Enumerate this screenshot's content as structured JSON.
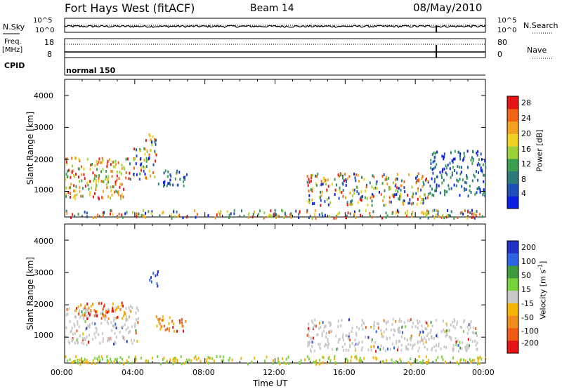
{
  "header": {
    "title": "Fort Hays West (fitACF)",
    "beam": "Beam 14",
    "date": "08/May/2010"
  },
  "top_panels": {
    "nsky_label": "N.Sky",
    "nsky_ticks": [
      "10^5",
      "10^0"
    ],
    "nsearch_label": "N.Search",
    "nsearch_ticks": [
      "10^5",
      "10^0"
    ],
    "freq_label": "Freq.",
    "freq_unit": "[MHz]",
    "freq_ticks": [
      "18",
      "8"
    ],
    "nave_label": "Nave",
    "nave_ticks": [
      "80",
      "0"
    ],
    "cpid_label": "CPID",
    "cpid_value": "normal 150"
  },
  "chart_data": [
    {
      "type": "heatmap",
      "panel": "power",
      "ylabel": "Slant Range [km]",
      "yticks": [
        "1000",
        "2000",
        "3000",
        "4000"
      ],
      "ylim": [
        200,
        4500
      ],
      "colorbar_label": "Power [dB]",
      "colorbar_ticks": [
        "4",
        "8",
        "12",
        "16",
        "20",
        "24",
        "28"
      ],
      "colors": [
        "#0a1ee6",
        "#1f4fb8",
        "#2c7b7b",
        "#3aa050",
        "#9bd23a",
        "#f0d21e",
        "#f5a01e",
        "#f06414",
        "#e61414"
      ],
      "echo_regions": [
        {
          "t": [
            0.0,
            3.6
          ],
          "r": [
            800,
            2100
          ],
          "level": "strong"
        },
        {
          "t": [
            3.6,
            5.2
          ],
          "r": [
            1400,
            2400
          ],
          "level": "mixed"
        },
        {
          "t": [
            4.6,
            5.2
          ],
          "r": [
            2300,
            2900
          ],
          "level": "mixed"
        },
        {
          "t": [
            5.2,
            7.0
          ],
          "r": [
            1200,
            1700
          ],
          "level": "weak"
        },
        {
          "t": [
            13.8,
            20.8
          ],
          "r": [
            600,
            1600
          ],
          "level": "mixed"
        },
        {
          "t": [
            20.8,
            24.0
          ],
          "r": [
            900,
            2300
          ],
          "level": "weak"
        },
        {
          "t": [
            0.0,
            24.0
          ],
          "r": [
            200,
            450
          ],
          "level": "mixed"
        }
      ]
    },
    {
      "type": "heatmap",
      "panel": "velocity",
      "ylabel": "Slant Range [km]",
      "yticks": [
        "1000",
        "2000",
        "3000",
        "4000"
      ],
      "ylim": [
        200,
        4500
      ],
      "colorbar_label": "Velocity [m s-1]",
      "colorbar_ticks": [
        "200",
        "100",
        "50",
        "15",
        "-15",
        "-50",
        "-100",
        "-200"
      ],
      "colors": [
        "#1e32c8",
        "#2d64e6",
        "#3c9b3c",
        "#78d23c",
        "#c8c8c8",
        "#f5b400",
        "#f08c1e",
        "#f05a14",
        "#e61414"
      ],
      "echo_regions": [
        {
          "t": [
            0.0,
            4.2
          ],
          "r": [
            800,
            2000
          ],
          "level": "near-zero"
        },
        {
          "t": [
            0.5,
            3.5
          ],
          "r": [
            1600,
            2100
          ],
          "level": "away"
        },
        {
          "t": [
            4.8,
            5.3
          ],
          "r": [
            2600,
            3100
          ],
          "level": "toward"
        },
        {
          "t": [
            5.2,
            7.0
          ],
          "r": [
            1200,
            1700
          ],
          "level": "away"
        },
        {
          "t": [
            13.8,
            23.5
          ],
          "r": [
            600,
            1600
          ],
          "level": "near-zero"
        },
        {
          "t": [
            0.0,
            24.0
          ],
          "r": [
            200,
            450
          ],
          "level": "ground"
        }
      ]
    }
  ],
  "xaxis": {
    "label": "Time UT",
    "ticks": [
      "00:00",
      "04:00",
      "08:00",
      "12:00",
      "16:00",
      "20:00",
      "00:00"
    ],
    "range_hours": [
      0,
      24
    ]
  }
}
